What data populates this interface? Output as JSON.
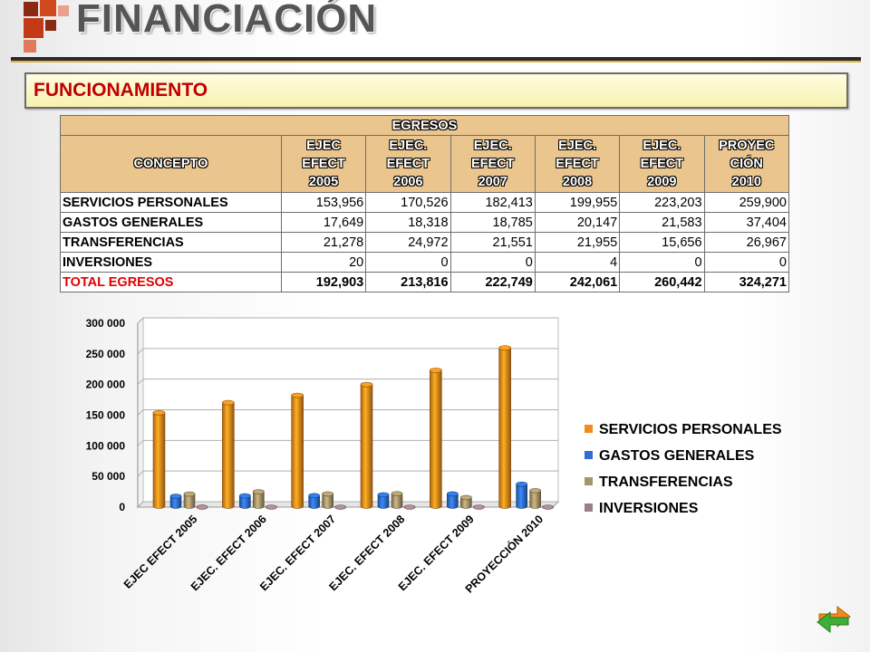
{
  "slide": {
    "title": "FINANCIACIÓN",
    "subtitle": "FUNCIONAMIENTO"
  },
  "table": {
    "group_header": "EGRESOS",
    "concept_header": "CONCEPTO",
    "column_headers": [
      [
        "EJEC",
        "EFECT",
        "2005"
      ],
      [
        "EJEC.",
        "EFECT",
        "2006"
      ],
      [
        "EJEC.",
        "EFECT",
        "2007"
      ],
      [
        "EJEC.",
        "EFECT",
        "2008"
      ],
      [
        "EJEC.",
        "EFECT",
        "2009"
      ],
      [
        "PROYEC",
        "CIÓN",
        "2010"
      ]
    ],
    "rows": [
      {
        "label": "SERVICIOS PERSONALES",
        "values": [
          "153,956",
          "170,526",
          "182,413",
          "199,955",
          "223,203",
          "259,900"
        ]
      },
      {
        "label": "GASTOS GENERALES",
        "values": [
          "17,649",
          "18,318",
          "18,785",
          "20,147",
          "21,583",
          "37,404"
        ]
      },
      {
        "label": "TRANSFERENCIAS",
        "values": [
          "21,278",
          "24,972",
          "21,551",
          "21,955",
          "15,656",
          "26,967"
        ]
      },
      {
        "label": "INVERSIONES",
        "values": [
          "20",
          "0",
          "0",
          "4",
          "0",
          "0"
        ]
      }
    ],
    "total": {
      "label": "TOTAL EGRESOS",
      "values": [
        "192,903",
        "213,816",
        "222,749",
        "242,061",
        "260,442",
        "324,271"
      ]
    }
  },
  "chart_data": {
    "type": "bar",
    "categories": [
      "EJEC EFECT 2005",
      "EJEC. EFECT 2006",
      "EJEC. EFECT 2007",
      "EJEC. EFECT 2008",
      "EJEC. EFECT 2009",
      "PROYECCIÓN 2010"
    ],
    "series": [
      {
        "name": "SERVICIOS PERSONALES",
        "values": [
          153956,
          170526,
          182413,
          199955,
          223203,
          259900
        ],
        "color": "#f28c1a"
      },
      {
        "name": "GASTOS GENERALES",
        "values": [
          17649,
          18318,
          18785,
          20147,
          21583,
          37404
        ],
        "color": "#2e6fd1"
      },
      {
        "name": "TRANSFERENCIAS",
        "values": [
          21278,
          24972,
          21551,
          21955,
          15656,
          26967
        ],
        "color": "#a8946a"
      },
      {
        "name": "INVERSIONES",
        "values": [
          20,
          0,
          0,
          4,
          0,
          0
        ],
        "color": "#9b7f86"
      }
    ],
    "yticks": [
      "0",
      "50 000",
      "100 000",
      "150 000",
      "200 000",
      "250 000",
      "300 000"
    ],
    "ylim": [
      0,
      300000
    ],
    "grid": true,
    "legend": "right",
    "style": "3d-cylinder"
  },
  "colors": {
    "title_text": "#555555",
    "subtitle_text": "#c00000",
    "table_header_bg": "#eac58e",
    "total_label": "#e00000"
  },
  "icons": {
    "logo": "red-squares-logo",
    "nav": "refresh-arrows-icon"
  }
}
